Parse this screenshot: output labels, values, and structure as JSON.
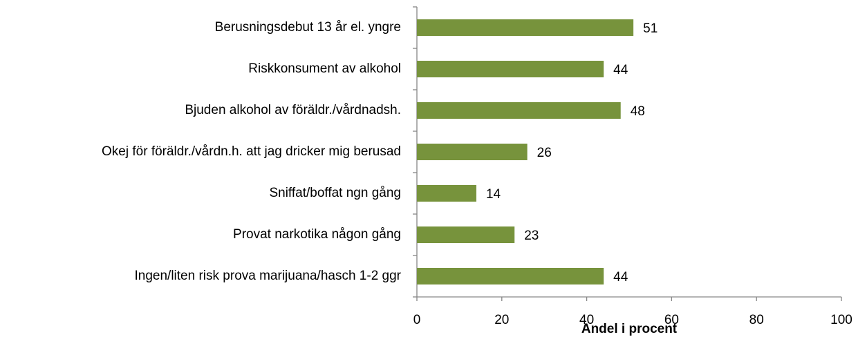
{
  "chart_data": {
    "type": "bar",
    "orientation": "horizontal",
    "categories": [
      "Berusningsdebut 13 år el. yngre",
      "Riskkonsument av alkohol",
      "Bjuden alkohol av föräldr./vårdnadsh.",
      "Okej för föräldr./vårdn.h. att jag dricker mig berusad",
      "Sniffat/boffat ngn gång",
      "Provat narkotika någon gång",
      "Ingen/liten risk prova marijuana/hasch 1-2 ggr"
    ],
    "values": [
      51,
      44,
      48,
      26,
      14,
      23,
      44
    ],
    "color": "#77933c",
    "xlabel": "Andel i procent",
    "xlim": [
      0,
      100
    ],
    "xticks": [
      0,
      20,
      40,
      60,
      80,
      100
    ],
    "grid": false
  }
}
